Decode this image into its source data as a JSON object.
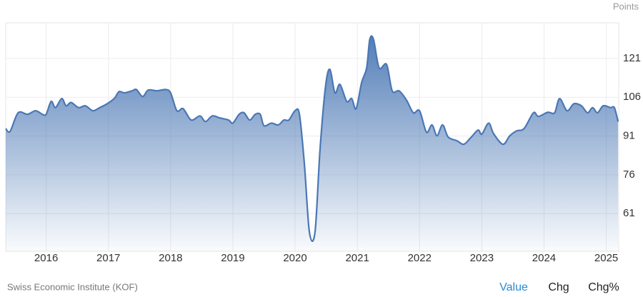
{
  "chart_data": {
    "type": "area",
    "y_axis_label": "Points",
    "source": "Swiss Economic Institute (KOF)",
    "tabs": [
      "Value",
      "Chg",
      "Chg%"
    ],
    "active_tab": "Value",
    "color": "#4a77b4",
    "grid": true,
    "xlim": [
      2015.35,
      2025.2
    ],
    "xticks": [
      2016,
      2017,
      2018,
      2019,
      2020,
      2021,
      2022,
      2023,
      2024,
      2025
    ],
    "ylim": [
      46.4,
      134.8
    ],
    "yticks": [
      61,
      76,
      91,
      106,
      121
    ],
    "x": [
      2015.35,
      2015.42,
      2015.55,
      2015.7,
      2015.83,
      2015.94,
      2016.0,
      2016.08,
      2016.15,
      2016.25,
      2016.32,
      2016.4,
      2016.52,
      2016.63,
      2016.75,
      2016.86,
      2016.98,
      2017.1,
      2017.17,
      2017.26,
      2017.38,
      2017.45,
      2017.55,
      2017.64,
      2017.78,
      2017.92,
      2018.0,
      2018.1,
      2018.2,
      2018.33,
      2018.47,
      2018.56,
      2018.67,
      2018.79,
      2018.93,
      2019.0,
      2019.1,
      2019.18,
      2019.27,
      2019.36,
      2019.44,
      2019.5,
      2019.62,
      2019.73,
      2019.82,
      2019.9,
      2020.0,
      2020.07,
      2020.15,
      2020.23,
      2020.32,
      2020.4,
      2020.49,
      2020.56,
      2020.64,
      2020.72,
      2020.83,
      2020.91,
      2020.98,
      2021.07,
      2021.15,
      2021.2,
      2021.26,
      2021.35,
      2021.47,
      2021.56,
      2021.67,
      2021.79,
      2021.9,
      2022.0,
      2022.11,
      2022.2,
      2022.28,
      2022.37,
      2022.46,
      2022.6,
      2022.71,
      2022.82,
      2022.94,
      2023.0,
      2023.11,
      2023.19,
      2023.34,
      2023.45,
      2023.56,
      2023.68,
      2023.83,
      2023.91,
      2024.06,
      2024.17,
      2024.25,
      2024.37,
      2024.48,
      2024.6,
      2024.7,
      2024.78,
      2024.86,
      2024.95,
      2025.07,
      2025.13,
      2025.19
    ],
    "values": [
      93.9,
      92.8,
      100,
      99.4,
      100.8,
      99.4,
      99.4,
      104.4,
      102,
      105.5,
      102.7,
      104,
      102,
      102.7,
      100.8,
      102,
      103.5,
      105.7,
      108.2,
      107.7,
      108.5,
      109,
      106.3,
      108.8,
      108.5,
      109,
      107.7,
      100.8,
      101.6,
      97.2,
      98.8,
      96.6,
      98.8,
      98,
      97.2,
      96,
      99.4,
      100,
      97.2,
      99.4,
      99.4,
      95,
      96,
      95.3,
      97.2,
      97.2,
      100.8,
      99.4,
      80,
      53.8,
      53.8,
      85.6,
      110.4,
      116.8,
      107.7,
      111,
      104.4,
      105.5,
      101.6,
      111.8,
      117.4,
      128.4,
      128.4,
      117.4,
      118.7,
      108.5,
      108.5,
      104.9,
      100,
      100.8,
      92.5,
      95.3,
      91.1,
      95.3,
      90.6,
      89.2,
      87.8,
      90.3,
      93.3,
      91.7,
      96,
      91.9,
      87.8,
      91.1,
      93,
      93.9,
      100,
      98.6,
      100.2,
      100,
      105.5,
      100.8,
      103.5,
      102.7,
      100,
      102,
      100,
      102.7,
      102,
      102,
      96.6
    ]
  }
}
